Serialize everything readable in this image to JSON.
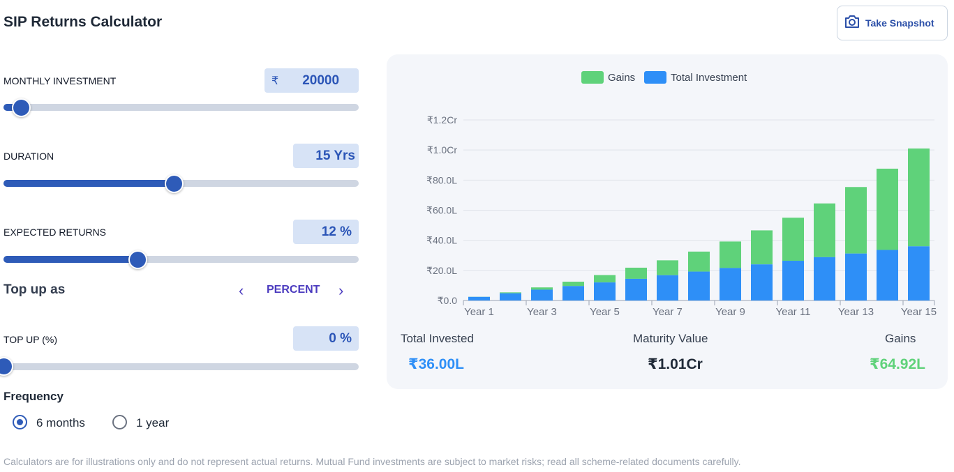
{
  "header": {
    "title": "SIP Returns Calculator",
    "snapshot_label": "Take Snapshot"
  },
  "inputs": {
    "monthly_investment": {
      "label": "MONTHLY INVESTMENT",
      "currency": "₹",
      "value": "20000",
      "slider_fraction": 0.05
    },
    "duration": {
      "label": "DURATION",
      "value": "15 Yrs",
      "slider_fraction": 0.48
    },
    "expected_returns": {
      "label": "EXPECTED RETURNS",
      "value": "12 %",
      "slider_fraction": 0.38
    },
    "topup_as": {
      "label": "Top up as",
      "value": "PERCENT",
      "prev": "‹",
      "next": "›"
    },
    "topup": {
      "label": "TOP UP (%)",
      "value": "0 %",
      "slider_fraction": 0.0
    }
  },
  "frequency": {
    "label": "Frequency",
    "options": [
      {
        "label": "6 months",
        "selected": true
      },
      {
        "label": "1 year",
        "selected": false
      }
    ]
  },
  "disclaimer": "Calculators are for illustrations only and do not represent actual returns. Mutual Fund investments are subject to market risks; read all scheme-related documents carefully.",
  "legend": {
    "gains": "Gains",
    "total_investment": "Total Investment"
  },
  "colors": {
    "gains": "#5fd27a",
    "investment": "#2e8ff7",
    "accent": "#2e5bb8"
  },
  "chart_data": {
    "type": "bar",
    "stacked": true,
    "categories": [
      "Year 1",
      "Year 2",
      "Year 3",
      "Year 4",
      "Year 5",
      "Year 6",
      "Year 7",
      "Year 8",
      "Year 9",
      "Year 10",
      "Year 11",
      "Year 12",
      "Year 13",
      "Year 14",
      "Year 15"
    ],
    "x_tick_labels": [
      "Year 1",
      "Year 3",
      "Year 5",
      "Year 7",
      "Year 9",
      "Year 11",
      "Year 13",
      "Year 15"
    ],
    "y_ticks": [
      "₹0.0",
      "₹20.0L",
      "₹40.0L",
      "₹60.0L",
      "₹80.0L",
      "₹1.0Cr",
      "₹1.2Cr"
    ],
    "y_tick_values": [
      0,
      20,
      40,
      60,
      80,
      100,
      120
    ],
    "ylim": [
      0,
      120
    ],
    "unit": "lakh",
    "series": [
      {
        "name": "Total Investment",
        "values": [
          2.4,
          4.8,
          7.2,
          9.6,
          12.0,
          14.4,
          16.8,
          19.2,
          21.6,
          24.0,
          26.4,
          28.8,
          31.2,
          33.6,
          36.0
        ]
      },
      {
        "name": "Gains",
        "values": [
          0.1,
          0.6,
          1.5,
          2.9,
          4.9,
          7.4,
          9.9,
          13.3,
          17.6,
          22.6,
          28.6,
          35.7,
          44.2,
          54.0,
          65.0
        ]
      }
    ],
    "grid": true,
    "legend_position": "top-center"
  },
  "summary": {
    "total_invested": {
      "label": "Total Invested",
      "value": "₹36.00L"
    },
    "maturity_value": {
      "label": "Maturity Value",
      "value": "₹1.01Cr"
    },
    "gains": {
      "label": "Gains",
      "value": "₹64.92L"
    }
  }
}
